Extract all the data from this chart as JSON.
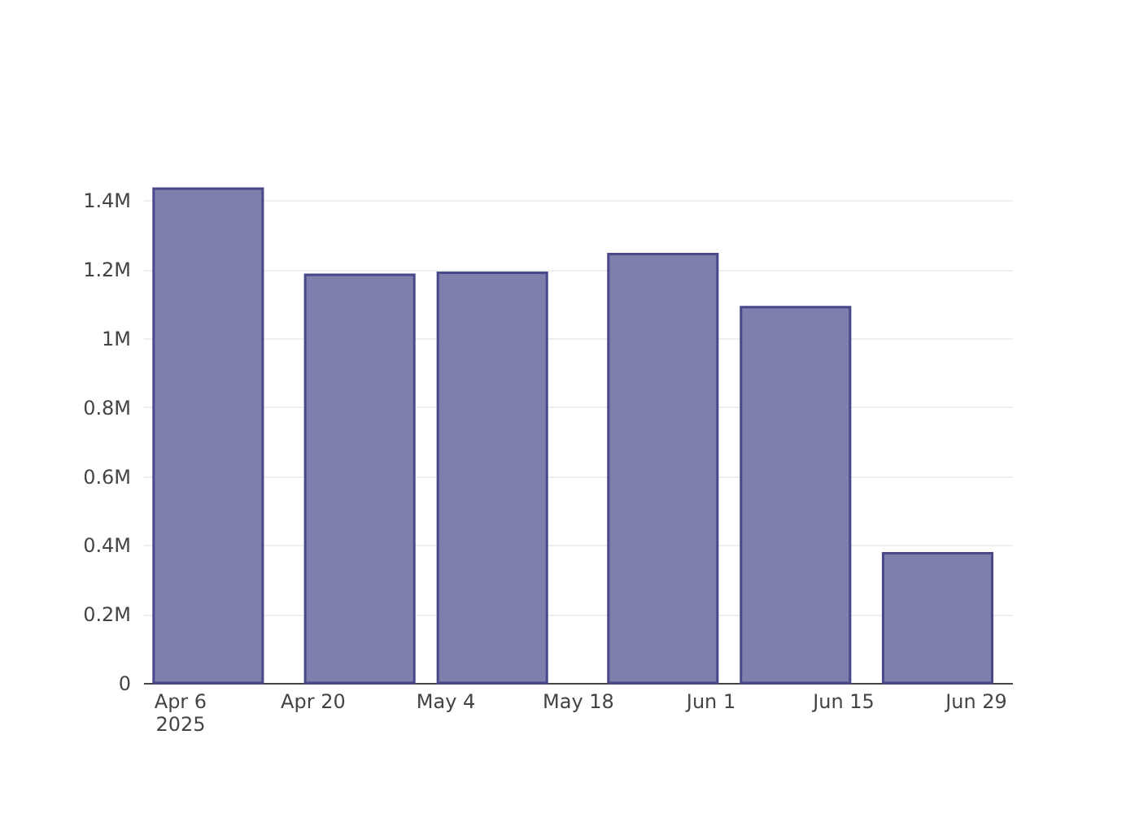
{
  "chart_data": {
    "type": "bar",
    "x": [
      "2025-04-09",
      "2025-04-25",
      "2025-05-09",
      "2025-05-27",
      "2025-06-10",
      "2025-06-25"
    ],
    "values": [
      1434000,
      1184000,
      1190000,
      1244000,
      1090000,
      376000
    ],
    "color": "#7f7fae",
    "xlim": [
      "2025-04-03",
      "2025-07-02"
    ],
    "xticks": [
      {
        "value": "2025-04-06",
        "label": "Apr 6\n2025"
      },
      {
        "value": "2025-04-20",
        "label": "Apr 20"
      },
      {
        "value": "2025-05-04",
        "label": "May 4"
      },
      {
        "value": "2025-05-18",
        "label": "May 18"
      },
      {
        "value": "2025-06-01",
        "label": "Jun 1"
      },
      {
        "value": "2025-06-15",
        "label": "Jun 15"
      },
      {
        "value": "2025-06-29",
        "label": "Jun 29"
      }
    ],
    "ylim": [
      0,
      1434000
    ],
    "yticks": [
      0,
      {
        "value": 200000,
        "label": "0.2M"
      },
      {
        "value": 400000,
        "label": "0.4M"
      },
      {
        "value": 600000,
        "label": "0.6M"
      },
      {
        "value": 800000,
        "label": "0.8M"
      },
      {
        "value": 1000000,
        "label": "1M"
      },
      {
        "value": 1200000,
        "label": "1.2M"
      },
      {
        "value": 1400000,
        "label": "1.4M"
      }
    ],
    "grid": "y"
  }
}
